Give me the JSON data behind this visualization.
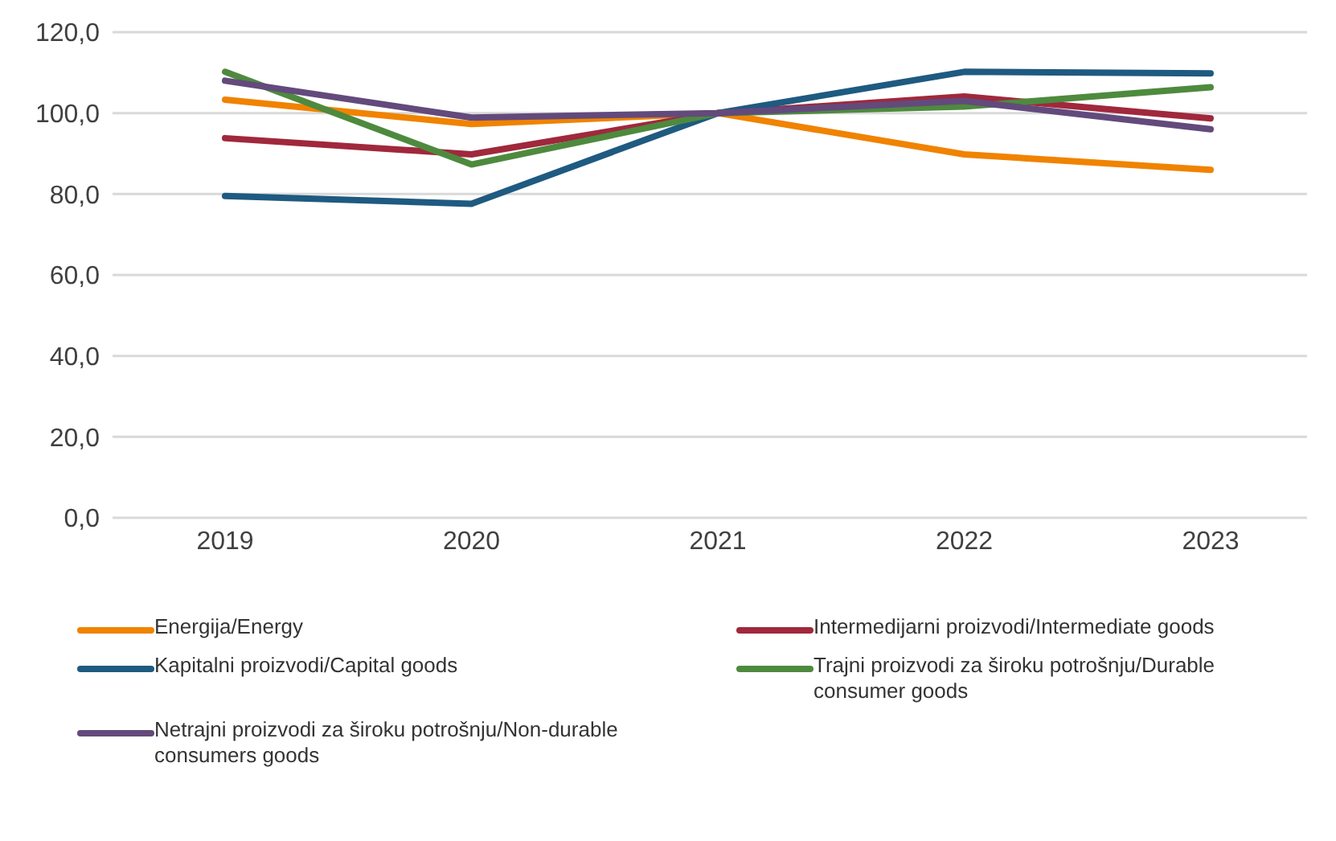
{
  "chart_data": {
    "type": "line",
    "categories": [
      "2019",
      "2020",
      "2021",
      "2022",
      "2023"
    ],
    "ylim": [
      0,
      120
    ],
    "yticks": [
      {
        "value": 0,
        "label": "0,0"
      },
      {
        "value": 20,
        "label": "20,0"
      },
      {
        "value": 40,
        "label": "40,0"
      },
      {
        "value": 60,
        "label": "60,0"
      },
      {
        "value": 80,
        "label": "80,0"
      },
      {
        "value": 100,
        "label": "100,0"
      },
      {
        "value": 120,
        "label": "120,0"
      }
    ],
    "grid": "y",
    "legend": "bottom",
    "marker": "none",
    "line_style": "solid",
    "series": [
      {
        "name": "Energija/Energy",
        "color": "#f08300",
        "values": [
          103.3,
          97.3,
          100,
          89.8,
          86
        ]
      },
      {
        "name": "Intermedijarni proizvodi/Intermediate goods",
        "color": "#a0283c",
        "values": [
          93.8,
          89.8,
          100,
          104.1,
          98.7
        ]
      },
      {
        "name": "Kapitalni proizvodi/Capital goods",
        "color": "#1f5a80",
        "values": [
          79.5,
          77.6,
          100,
          110.2,
          109.8
        ]
      },
      {
        "name": "Trajni proizvodi za široku potrošnju/Durable consumer goods",
        "color": "#4e8a3e",
        "values": [
          110.2,
          87.3,
          100,
          101.6,
          106.4
        ]
      },
      {
        "name": "Netrajni proizvodi za široku potrošnju/Non-durable consumers goods",
        "color": "#634a7c",
        "values": [
          108,
          98.9,
          100,
          103,
          96
        ]
      }
    ]
  }
}
